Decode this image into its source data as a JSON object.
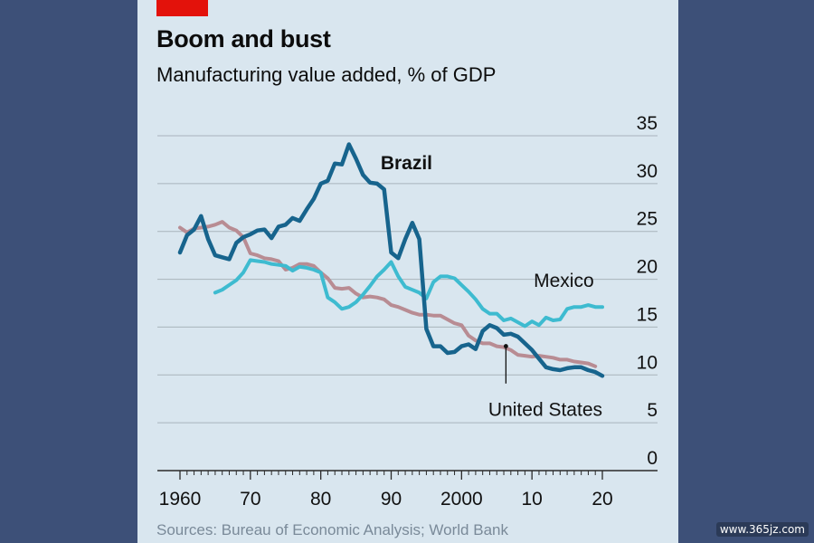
{
  "header": {
    "title": "Boom and bust",
    "subtitle": "Manufacturing value added, % of GDP"
  },
  "footer": {
    "source": "Sources: Bureau of Economic Analysis; World Bank"
  },
  "watermark": "www.365jz.com",
  "colors": {
    "brazil": "#17648d",
    "mexico": "#3ebbd0",
    "united_states": "#b88c93",
    "gridline": "#a9b3bc",
    "brand_red": "#e3120b"
  },
  "chart_data": {
    "type": "line",
    "title": "Boom and bust",
    "subtitle": "Manufacturing value added, % of GDP",
    "xlim": [
      1960,
      2020
    ],
    "ylim": [
      0,
      35
    ],
    "x_ticks": [
      {
        "value": 1960,
        "label": "1960"
      },
      {
        "value": 1970,
        "label": "70"
      },
      {
        "value": 1980,
        "label": "80"
      },
      {
        "value": 1990,
        "label": "90"
      },
      {
        "value": 2000,
        "label": "2000"
      },
      {
        "value": 2010,
        "label": "10"
      },
      {
        "value": 2020,
        "label": "20"
      }
    ],
    "y_ticks": [
      0,
      5,
      10,
      15,
      20,
      25,
      30,
      35
    ],
    "grid": true,
    "legend": "direct labels",
    "series": [
      {
        "name": "Brazil",
        "color": "#17648d",
        "x": [
          1960,
          1961,
          1962,
          1963,
          1964,
          1965,
          1966,
          1967,
          1968,
          1969,
          1970,
          1971,
          1972,
          1973,
          1974,
          1975,
          1976,
          1977,
          1978,
          1979,
          1980,
          1981,
          1982,
          1983,
          1984,
          1985,
          1986,
          1987,
          1988,
          1989,
          1990,
          1991,
          1992,
          1993,
          1994,
          1995,
          1996,
          1997,
          1998,
          1999,
          2000,
          2001,
          2002,
          2003,
          2004,
          2005,
          2006,
          2007,
          2008,
          2009,
          2010,
          2011,
          2012,
          2013,
          2014,
          2015,
          2016,
          2017,
          2018,
          2019,
          2020
        ],
        "values": [
          22.8,
          24.6,
          25.2,
          26.6,
          24.2,
          22.5,
          22.3,
          22.1,
          23.8,
          24.4,
          24.7,
          25.1,
          25.2,
          24.3,
          25.5,
          25.7,
          26.4,
          26.1,
          27.3,
          28.4,
          30.0,
          30.3,
          32.1,
          32.0,
          34.1,
          32.6,
          30.9,
          30.1,
          30.0,
          29.4,
          22.8,
          22.2,
          24.2,
          25.9,
          24.2,
          14.8,
          13.0,
          13.0,
          12.3,
          12.4,
          13.0,
          13.2,
          12.7,
          14.6,
          15.2,
          14.9,
          14.2,
          14.3,
          14.0,
          13.3,
          12.6,
          11.7,
          10.8,
          10.6,
          10.5,
          10.7,
          10.8,
          10.8,
          10.5,
          10.3,
          9.9
        ]
      },
      {
        "name": "Mexico",
        "color": "#3ebbd0",
        "x": [
          1965,
          1966,
          1967,
          1968,
          1969,
          1970,
          1971,
          1972,
          1973,
          1974,
          1975,
          1976,
          1977,
          1978,
          1979,
          1980,
          1981,
          1982,
          1983,
          1984,
          1985,
          1986,
          1987,
          1988,
          1989,
          1990,
          1991,
          1992,
          1993,
          1994,
          1995,
          1996,
          1997,
          1998,
          1999,
          2000,
          2001,
          2002,
          2003,
          2004,
          2005,
          2006,
          2007,
          2008,
          2009,
          2010,
          2011,
          2012,
          2013,
          2014,
          2015,
          2016,
          2017,
          2018,
          2019,
          2020
        ],
        "values": [
          18.6,
          18.9,
          19.4,
          19.9,
          20.7,
          22.0,
          21.9,
          21.8,
          21.6,
          21.5,
          21.4,
          20.9,
          21.3,
          21.2,
          21.0,
          20.7,
          18.1,
          17.6,
          16.9,
          17.1,
          17.6,
          18.4,
          19.3,
          20.3,
          21.0,
          21.8,
          20.3,
          19.2,
          18.9,
          18.6,
          18.0,
          19.7,
          20.3,
          20.3,
          20.1,
          19.4,
          18.7,
          17.9,
          16.9,
          16.4,
          16.4,
          15.7,
          15.9,
          15.5,
          15.1,
          15.6,
          15.2,
          16.0,
          15.7,
          15.8,
          16.9,
          17.1,
          17.1,
          17.3,
          17.1,
          17.1
        ]
      },
      {
        "name": "United States",
        "color": "#b88c93",
        "x": [
          1960,
          1961,
          1962,
          1963,
          1964,
          1965,
          1966,
          1967,
          1968,
          1969,
          1970,
          1971,
          1972,
          1973,
          1974,
          1975,
          1976,
          1977,
          1978,
          1979,
          1980,
          1981,
          1982,
          1983,
          1984,
          1985,
          1986,
          1987,
          1988,
          1989,
          1990,
          1991,
          1992,
          1993,
          1994,
          1995,
          1996,
          1997,
          1998,
          1999,
          2000,
          2001,
          2002,
          2003,
          2004,
          2005,
          2006,
          2007,
          2008,
          2009,
          2010,
          2011,
          2012,
          2013,
          2014,
          2015,
          2016,
          2017,
          2018,
          2019
        ],
        "values": [
          25.4,
          24.9,
          25.3,
          25.4,
          25.5,
          25.7,
          26.0,
          25.4,
          25.1,
          24.4,
          22.7,
          22.5,
          22.2,
          22.1,
          21.9,
          21.0,
          21.2,
          21.6,
          21.6,
          21.4,
          20.7,
          20.1,
          19.1,
          19.0,
          19.1,
          18.5,
          18.1,
          18.2,
          18.1,
          17.9,
          17.3,
          17.1,
          16.8,
          16.5,
          16.3,
          16.3,
          16.2,
          16.2,
          15.8,
          15.4,
          15.2,
          14.1,
          13.6,
          13.3,
          13.3,
          13.0,
          12.9,
          12.6,
          12.1,
          12.0,
          11.9,
          12.0,
          11.9,
          11.8,
          11.6,
          11.6,
          11.4,
          11.3,
          11.2,
          10.9
        ]
      }
    ],
    "annotations": [
      {
        "label": "Brazil",
        "series": "Brazil"
      },
      {
        "label": "Mexico",
        "series": "Mexico"
      },
      {
        "label": "United States",
        "series": "United States"
      }
    ]
  }
}
